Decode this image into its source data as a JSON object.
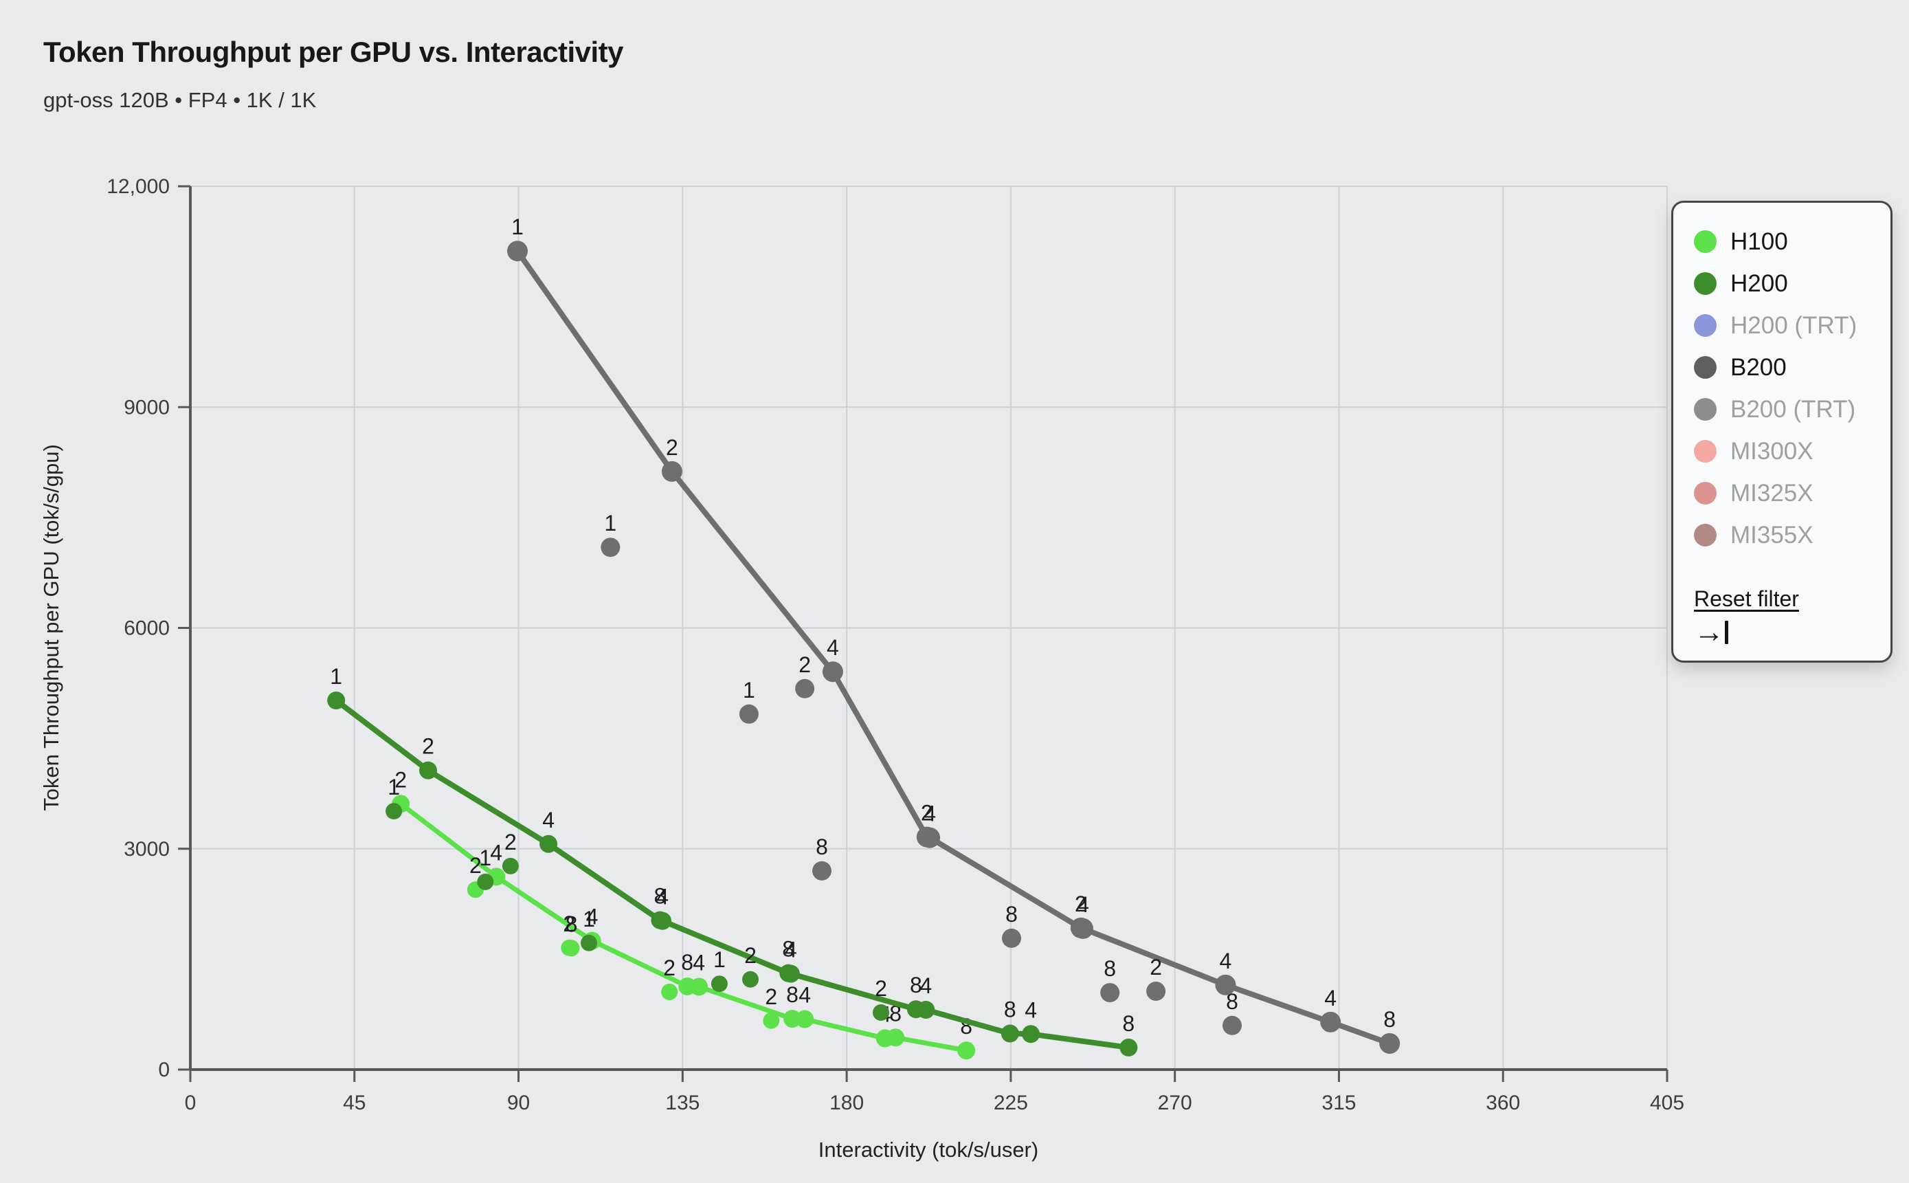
{
  "header": {
    "title": "Token Throughput per GPU vs. Interactivity",
    "subtitle": "gpt-oss 120B • FP4 • 1K / 1K"
  },
  "axes": {
    "x": {
      "label": "Interactivity (tok/s/user)",
      "tick_labels": [
        "0",
        "45",
        "90",
        "135",
        "180",
        "225",
        "270",
        "315",
        "360",
        "405"
      ],
      "tick_values": [
        0,
        45,
        90,
        135,
        180,
        225,
        270,
        315,
        360,
        405
      ],
      "min": 0,
      "max": 405
    },
    "y": {
      "label": "Token Throughput per GPU (tok/s/gpu)",
      "tick_labels": [
        "0",
        "3000",
        "6000",
        "9000",
        "12,000"
      ],
      "tick_values": [
        0,
        3000,
        6000,
        9000,
        12000
      ],
      "min": 0,
      "max": 12000
    }
  },
  "legend": {
    "items": [
      {
        "label": "H100",
        "color": "#5ce14b",
        "active": true
      },
      {
        "label": "H200",
        "color": "#3e8d2d",
        "active": true
      },
      {
        "label": "H200 (TRT)",
        "color": "#8b95da",
        "active": false
      },
      {
        "label": "B200",
        "color": "#5f5f5f",
        "active": true
      },
      {
        "label": "B200 (TRT)",
        "color": "#8d8d8d",
        "active": false
      },
      {
        "label": "MI300X",
        "color": "#f3a8a2",
        "active": false
      },
      {
        "label": "MI325X",
        "color": "#da938f",
        "active": false
      },
      {
        "label": "MI355X",
        "color": "#b28984",
        "active": false
      }
    ],
    "reset_label": "Reset filter",
    "collapse_icon": "arrow-to-bar"
  },
  "chart_data": {
    "type": "scatter",
    "title": "Token Throughput per GPU vs. Interactivity",
    "subtitle": "gpt-oss 120B • FP4 • 1K / 1K",
    "xlabel": "Interactivity (tok/s/user)",
    "ylabel": "Token Throughput per GPU (tok/s/gpu)",
    "xlim": [
      0,
      405
    ],
    "ylim": [
      0,
      12000
    ],
    "grid": true,
    "legend_position": "right",
    "point_label_meaning": "tensor-parallel GPUs per replica",
    "series": [
      {
        "name": "H100",
        "color": "#5ce14b",
        "line_width": 7,
        "dot_radius": 13,
        "line_points": [
          {
            "x": 57.7,
            "y": 3610,
            "label": "2"
          },
          {
            "x": 83.9,
            "y": 2620,
            "label": "4"
          },
          {
            "x": 110.2,
            "y": 1750,
            "label": "4"
          },
          {
            "x": 136.3,
            "y": 1130,
            "label": "8"
          },
          {
            "x": 139.5,
            "y": 1125,
            "label": "4"
          },
          {
            "x": 165.1,
            "y": 690,
            "label": "8"
          },
          {
            "x": 168.5,
            "y": 685,
            "label": "4"
          },
          {
            "x": 190.5,
            "y": 425,
            "label": "4"
          },
          {
            "x": 193.4,
            "y": 435,
            "label": "8"
          },
          {
            "x": 212.8,
            "y": 260,
            "label": "8"
          }
        ],
        "scatter_points": [
          {
            "x": 78.2,
            "y": 2445,
            "label": "2"
          },
          {
            "x": 103.9,
            "y": 1655,
            "label": "2"
          },
          {
            "x": 104.5,
            "y": 1650,
            "label": "8"
          },
          {
            "x": 131.4,
            "y": 1055,
            "label": "2"
          },
          {
            "x": 159.3,
            "y": 665,
            "label": "2"
          }
        ]
      },
      {
        "name": "H200",
        "color": "#3e8d2d",
        "line_width": 8,
        "dot_radius": 13,
        "line_points": [
          {
            "x": 40.0,
            "y": 5015,
            "label": "1"
          },
          {
            "x": 65.2,
            "y": 4065,
            "label": "2"
          },
          {
            "x": 98.2,
            "y": 3065,
            "label": "4"
          },
          {
            "x": 128.8,
            "y": 2030,
            "label": "8"
          },
          {
            "x": 129.5,
            "y": 2020,
            "label": "4"
          },
          {
            "x": 164.0,
            "y": 1310,
            "label": "8"
          },
          {
            "x": 164.7,
            "y": 1302,
            "label": "4"
          },
          {
            "x": 199.0,
            "y": 820,
            "label": "8"
          },
          {
            "x": 201.7,
            "y": 812,
            "label": "4"
          },
          {
            "x": 224.8,
            "y": 490,
            "label": "8"
          },
          {
            "x": 230.5,
            "y": 483,
            "label": "4"
          },
          {
            "x": 257.3,
            "y": 300,
            "label": "8"
          }
        ],
        "scatter_points": [
          {
            "x": 55.8,
            "y": 3510,
            "label": "1"
          },
          {
            "x": 80.9,
            "y": 2550,
            "label": "1"
          },
          {
            "x": 87.8,
            "y": 2765,
            "label": "2"
          },
          {
            "x": 109.3,
            "y": 1720,
            "label": "1"
          },
          {
            "x": 145.1,
            "y": 1165,
            "label": "1"
          },
          {
            "x": 153.6,
            "y": 1225,
            "label": "2"
          },
          {
            "x": 189.4,
            "y": 775,
            "label": "2"
          }
        ]
      },
      {
        "name": "B200",
        "color": "#6f6f6f",
        "line_width": 8,
        "dot_radius": 15,
        "line_points": [
          {
            "x": 89.7,
            "y": 11120,
            "label": "1"
          },
          {
            "x": 132.1,
            "y": 8125,
            "label": "2"
          },
          {
            "x": 176.2,
            "y": 5405,
            "label": "4"
          },
          {
            "x": 202.0,
            "y": 3160,
            "label": "2"
          },
          {
            "x": 202.8,
            "y": 3150,
            "label": "4"
          },
          {
            "x": 244.2,
            "y": 1925,
            "label": "2"
          },
          {
            "x": 244.8,
            "y": 1915,
            "label": "4"
          },
          {
            "x": 283.9,
            "y": 1150,
            "label": "4"
          },
          {
            "x": 312.7,
            "y": 645,
            "label": "4"
          },
          {
            "x": 328.9,
            "y": 355,
            "label": "8"
          }
        ],
        "scatter_points": [
          {
            "x": 115.2,
            "y": 7095,
            "label": "1"
          },
          {
            "x": 153.2,
            "y": 4830,
            "label": "1"
          },
          {
            "x": 168.5,
            "y": 5175,
            "label": "2"
          },
          {
            "x": 173.2,
            "y": 2700,
            "label": "8"
          },
          {
            "x": 225.2,
            "y": 1785,
            "label": "8"
          },
          {
            "x": 252.2,
            "y": 1045,
            "label": "8"
          },
          {
            "x": 264.8,
            "y": 1065,
            "label": "2"
          },
          {
            "x": 285.7,
            "y": 600,
            "label": "8"
          }
        ]
      }
    ]
  },
  "colors": {
    "background": "#e8eaec",
    "gridline": "#c9d2da",
    "axis": "#58585a",
    "tick_text": "#3d3d3f",
    "point_label_text": "#1d1d1f"
  }
}
